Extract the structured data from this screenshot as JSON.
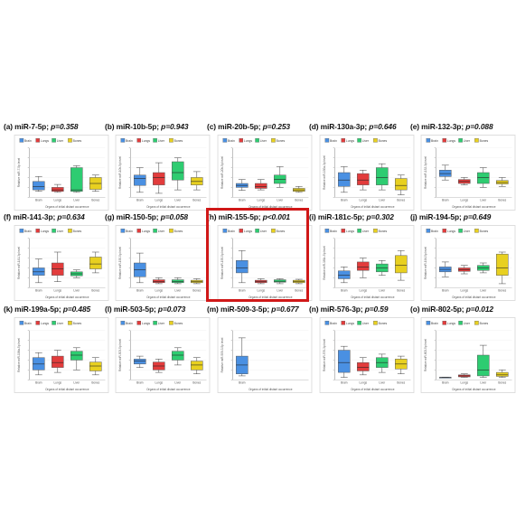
{
  "colors": {
    "brain": "#4a90e2",
    "lungs": "#e23c3c",
    "liver": "#2ecc71",
    "bones": "#e8d020",
    "frame": "#d01818"
  },
  "highlight_panel": "h",
  "chart_data": [
    {
      "type": "box",
      "panel": "(a)",
      "title": "miR-7-5p;",
      "p_label": "p=0.358",
      "ylabel": "Relative miR-7-5p level",
      "xlabel": "Organs of initial distant occurrence",
      "legend": [
        "Brain",
        "Lungs",
        "Liver",
        "Bones"
      ],
      "categories": [
        "Brain",
        "Lungs",
        "Liver",
        "Bones"
      ],
      "yticks": [],
      "ylim": [
        0,
        1
      ],
      "boxes": [
        {
          "min": 0.12,
          "q1": 0.15,
          "median": 0.22,
          "q3": 0.32,
          "max": 0.42
        },
        {
          "min": 0.1,
          "q1": 0.12,
          "median": 0.15,
          "q3": 0.2,
          "max": 0.26
        },
        {
          "min": 0.1,
          "q1": 0.12,
          "median": 0.15,
          "q3": 0.6,
          "max": 0.64
        },
        {
          "min": 0.12,
          "q1": 0.16,
          "median": 0.28,
          "q3": 0.4,
          "max": 0.45
        }
      ]
    },
    {
      "type": "box",
      "panel": "(b)",
      "title": "miR-10b-5p;",
      "p_label": "p=0.943",
      "ylabel": "Relative miR-10b-5p level",
      "xlabel": "Organs of initial distant occurrence",
      "legend": [
        "Brain",
        "Lungs",
        "Liver",
        "Bones"
      ],
      "categories": [
        "Brain",
        "Lungs",
        "Liver",
        "Bones"
      ],
      "yticks": [],
      "ylim": [
        0,
        1
      ],
      "boxes": [
        {
          "min": 0.1,
          "q1": 0.24,
          "median": 0.38,
          "q3": 0.45,
          "max": 0.6
        },
        {
          "min": 0.08,
          "q1": 0.25,
          "median": 0.4,
          "q3": 0.5,
          "max": 0.7
        },
        {
          "min": 0.15,
          "q1": 0.35,
          "median": 0.5,
          "q3": 0.72,
          "max": 0.8
        },
        {
          "min": 0.15,
          "q1": 0.25,
          "median": 0.32,
          "q3": 0.4,
          "max": 0.52
        }
      ]
    },
    {
      "type": "box",
      "panel": "(c)",
      "title": "miR-20b-5p;",
      "p_label": "p=0.253",
      "ylabel": "Relative miR-20b-5p level",
      "xlabel": "Organs of initial distant occurrence",
      "legend": [
        "Brain",
        "Lungs",
        "Liver",
        "Bones"
      ],
      "categories": [
        "Brain",
        "Lungs",
        "Liver",
        "Bones"
      ],
      "yticks": [],
      "ylim": [
        0,
        1
      ],
      "boxes": [
        {
          "min": 0.14,
          "q1": 0.2,
          "median": 0.24,
          "q3": 0.28,
          "max": 0.36
        },
        {
          "min": 0.15,
          "q1": 0.18,
          "median": 0.22,
          "q3": 0.28,
          "max": 0.36
        },
        {
          "min": 0.2,
          "q1": 0.28,
          "median": 0.36,
          "q3": 0.45,
          "max": 0.62
        },
        {
          "min": 0.1,
          "q1": 0.12,
          "median": 0.15,
          "q3": 0.18,
          "max": 0.22
        }
      ]
    },
    {
      "type": "box",
      "panel": "(d)",
      "title": "miR-130a-3p;",
      "p_label": "p=0.646",
      "ylabel": "Relative miR-130a-3p level",
      "xlabel": "Organs of initial distant occurrence",
      "legend": [
        "Brain",
        "Lungs",
        "Liver",
        "Bones"
      ],
      "categories": [
        "Brain",
        "Lungs",
        "Liver",
        "Bones"
      ],
      "yticks": [],
      "ylim": [
        0,
        1
      ],
      "boxes": [
        {
          "min": 0.1,
          "q1": 0.22,
          "median": 0.35,
          "q3": 0.5,
          "max": 0.62
        },
        {
          "min": 0.15,
          "q1": 0.25,
          "median": 0.35,
          "q3": 0.48,
          "max": 0.55
        },
        {
          "min": 0.15,
          "q1": 0.25,
          "median": 0.4,
          "q3": 0.6,
          "max": 0.68
        },
        {
          "min": 0.05,
          "q1": 0.15,
          "median": 0.24,
          "q3": 0.38,
          "max": 0.45
        }
      ]
    },
    {
      "type": "box",
      "panel": "(e)",
      "title": "miR-132-3p;",
      "p_label": "p=0.088",
      "ylabel": "Relative miR-132-3p level",
      "xlabel": "Organs of initial distant occurrence",
      "legend": [
        "Brain",
        "Lungs",
        "Liver",
        "Bones"
      ],
      "categories": [
        "Brain",
        "Lungs",
        "Liver",
        "Bones"
      ],
      "yticks": [],
      "ylim": [
        0,
        1
      ],
      "boxes": [
        {
          "min": 0.35,
          "q1": 0.42,
          "median": 0.48,
          "q3": 0.55,
          "max": 0.65
        },
        {
          "min": 0.25,
          "q1": 0.28,
          "median": 0.32,
          "q3": 0.36,
          "max": 0.4
        },
        {
          "min": 0.2,
          "q1": 0.28,
          "median": 0.4,
          "q3": 0.5,
          "max": 0.6
        },
        {
          "min": 0.22,
          "q1": 0.27,
          "median": 0.3,
          "q3": 0.34,
          "max": 0.4
        }
      ]
    },
    {
      "type": "box",
      "panel": "(f)",
      "title": "miR-141-3p;",
      "p_label": "p=0.634",
      "ylabel": "Relative miR-141-3p level",
      "xlabel": "Organs of initial distant occurrence",
      "legend": [
        "Brain",
        "Lungs",
        "Liver",
        "Bones"
      ],
      "categories": [
        "Brain",
        "Lungs",
        "Liver",
        "Bones"
      ],
      "yticks": [],
      "ylim": [
        0,
        1
      ],
      "boxes": [
        {
          "min": 0.1,
          "q1": 0.25,
          "median": 0.32,
          "q3": 0.4,
          "max": 0.58
        },
        {
          "min": 0.12,
          "q1": 0.25,
          "median": 0.38,
          "q3": 0.5,
          "max": 0.72
        },
        {
          "min": 0.2,
          "q1": 0.24,
          "median": 0.28,
          "q3": 0.32,
          "max": 0.36
        },
        {
          "min": 0.3,
          "q1": 0.38,
          "median": 0.48,
          "q3": 0.62,
          "max": 0.72
        }
      ]
    },
    {
      "type": "box",
      "panel": "(g)",
      "title": "miR-150-5p;",
      "p_label": "p=0.058",
      "ylabel": "Relative miR-150-5p level",
      "xlabel": "Organs of initial distant occurrence",
      "legend": [
        "Brain",
        "Lungs",
        "Liver",
        "Bones"
      ],
      "categories": [
        "Brain",
        "Lungs",
        "Liver",
        "Bones"
      ],
      "yticks": [],
      "ylim": [
        0,
        1
      ],
      "boxes": [
        {
          "min": 0.1,
          "q1": 0.22,
          "median": 0.36,
          "q3": 0.5,
          "max": 0.7
        },
        {
          "min": 0.08,
          "q1": 0.1,
          "median": 0.12,
          "q3": 0.16,
          "max": 0.2
        },
        {
          "min": 0.08,
          "q1": 0.1,
          "median": 0.12,
          "q3": 0.16,
          "max": 0.2
        },
        {
          "min": 0.08,
          "q1": 0.1,
          "median": 0.12,
          "q3": 0.15,
          "max": 0.18
        }
      ]
    },
    {
      "type": "box",
      "panel": "(h)",
      "title": "miR-155-5p;",
      "p_label": "p<0.001",
      "ylabel": "Relative miR-155-5p level",
      "xlabel": "Organs of initial distant occurrence",
      "legend": [
        "Brain",
        "Lungs",
        "Liver",
        "Bones"
      ],
      "categories": [
        "Brain",
        "Lungs",
        "Liver",
        "Bones"
      ],
      "yticks": [],
      "ylim": [
        0,
        1
      ],
      "boxes": [
        {
          "min": 0.1,
          "q1": 0.3,
          "median": 0.4,
          "q3": 0.55,
          "max": 0.75
        },
        {
          "min": 0.08,
          "q1": 0.1,
          "median": 0.12,
          "q3": 0.15,
          "max": 0.18
        },
        {
          "min": 0.08,
          "q1": 0.11,
          "median": 0.13,
          "q3": 0.16,
          "max": 0.18
        },
        {
          "min": 0.08,
          "q1": 0.1,
          "median": 0.12,
          "q3": 0.15,
          "max": 0.17
        }
      ]
    },
    {
      "type": "box",
      "panel": "(i)",
      "title": "miR-181c-5p;",
      "p_label": "p=0.302",
      "ylabel": "Relative miR-181c-5p level",
      "xlabel": "Organs of initial distant occurrence",
      "legend": [
        "Brain",
        "Lungs",
        "Liver",
        "Bones"
      ],
      "categories": [
        "Brain",
        "Lungs",
        "Liver",
        "Bones"
      ],
      "yticks": [],
      "ylim": [
        0,
        1
      ],
      "boxes": [
        {
          "min": 0.1,
          "q1": 0.18,
          "median": 0.25,
          "q3": 0.34,
          "max": 0.42
        },
        {
          "min": 0.2,
          "q1": 0.35,
          "median": 0.42,
          "q3": 0.52,
          "max": 0.6
        },
        {
          "min": 0.25,
          "q1": 0.32,
          "median": 0.4,
          "q3": 0.48,
          "max": 0.55
        },
        {
          "min": 0.15,
          "q1": 0.3,
          "median": 0.45,
          "q3": 0.65,
          "max": 0.75
        }
      ]
    },
    {
      "type": "box",
      "panel": "(j)",
      "title": "miR-194-5p;",
      "p_label": "p=0.649",
      "ylabel": "Relative miR-194-5p level",
      "xlabel": "Organs of initial distant occurrence",
      "legend": [
        "Brain",
        "Lungs",
        "Liver",
        "Bones"
      ],
      "categories": [
        "Brain",
        "Lungs",
        "Liver",
        "Bones"
      ],
      "yticks": [],
      "ylim": [
        0,
        1
      ],
      "boxes": [
        {
          "min": 0.22,
          "q1": 0.32,
          "median": 0.37,
          "q3": 0.42,
          "max": 0.52
        },
        {
          "min": 0.28,
          "q1": 0.33,
          "median": 0.36,
          "q3": 0.4,
          "max": 0.45
        },
        {
          "min": 0.3,
          "q1": 0.35,
          "median": 0.4,
          "q3": 0.45,
          "max": 0.5
        },
        {
          "min": 0.08,
          "q1": 0.25,
          "median": 0.4,
          "q3": 0.68,
          "max": 0.72
        }
      ]
    },
    {
      "type": "box",
      "panel": "(k)",
      "title": "miR-199a-5p;",
      "p_label": "p=0.485",
      "ylabel": "Relative miR-199a-5p level",
      "xlabel": "Organs of initial distant occurrence",
      "legend": [
        "Brain",
        "Lungs",
        "Liver",
        "Bones"
      ],
      "categories": [
        "Brain",
        "Lungs",
        "Liver",
        "Bones"
      ],
      "yticks": [],
      "ylim": [
        0,
        1
      ],
      "boxes": [
        {
          "min": 0.1,
          "q1": 0.2,
          "median": 0.32,
          "q3": 0.45,
          "max": 0.55
        },
        {
          "min": 0.15,
          "q1": 0.25,
          "median": 0.35,
          "q3": 0.48,
          "max": 0.6
        },
        {
          "min": 0.2,
          "q1": 0.4,
          "median": 0.5,
          "q3": 0.58,
          "max": 0.65
        },
        {
          "min": 0.1,
          "q1": 0.18,
          "median": 0.28,
          "q3": 0.36,
          "max": 0.45
        }
      ]
    },
    {
      "type": "box",
      "panel": "(l)",
      "title": "miR-503-5p;",
      "p_label": "p=0.073",
      "ylabel": "Relative miR-503-5p level",
      "xlabel": "Organs of initial distant occurrence",
      "legend": [
        "Brain",
        "Lungs",
        "Liver",
        "Bones"
      ],
      "categories": [
        "Brain",
        "Lungs",
        "Liver",
        "Bones"
      ],
      "yticks": [],
      "ylim": [
        0,
        1
      ],
      "boxes": [
        {
          "min": 0.25,
          "q1": 0.32,
          "median": 0.38,
          "q3": 0.42,
          "max": 0.48
        },
        {
          "min": 0.15,
          "q1": 0.2,
          "median": 0.28,
          "q3": 0.36,
          "max": 0.42
        },
        {
          "min": 0.3,
          "q1": 0.4,
          "median": 0.5,
          "q3": 0.58,
          "max": 0.65
        },
        {
          "min": 0.12,
          "q1": 0.2,
          "median": 0.3,
          "q3": 0.38,
          "max": 0.45
        }
      ]
    },
    {
      "type": "box",
      "panel": "(m)",
      "title": "miR-509-3-5p;",
      "p_label": "p=0.677",
      "ylabel": "Relative miR-509-3-5p level",
      "xlabel": "Organs of initial distant occurrence",
      "legend": [],
      "categories": [
        "Brain"
      ],
      "yticks": [],
      "ylim": [
        0,
        1
      ],
      "boxes": [
        {
          "min": 0.08,
          "q1": 0.12,
          "median": 0.3,
          "q3": 0.48,
          "max": 0.85
        }
      ]
    },
    {
      "type": "box",
      "panel": "(n)",
      "title": "miR-576-3p;",
      "p_label": "p=0.59",
      "ylabel": "Relative miR-576-3p level",
      "xlabel": "Organs of initial distant occurrence",
      "legend": [
        "Brain",
        "Lungs",
        "Liver",
        "Bones"
      ],
      "categories": [
        "Brain",
        "Lungs",
        "Liver",
        "Bones"
      ],
      "yticks": [],
      "ylim": [
        0,
        1
      ],
      "boxes": [
        {
          "min": 0.05,
          "q1": 0.15,
          "median": 0.35,
          "q3": 0.6,
          "max": 0.68
        },
        {
          "min": 0.1,
          "q1": 0.18,
          "median": 0.25,
          "q3": 0.35,
          "max": 0.45
        },
        {
          "min": 0.15,
          "q1": 0.25,
          "median": 0.35,
          "q3": 0.45,
          "max": 0.52
        },
        {
          "min": 0.12,
          "q1": 0.22,
          "median": 0.32,
          "q3": 0.42,
          "max": 0.48
        }
      ]
    },
    {
      "type": "box",
      "panel": "(o)",
      "title": "miR-802-5p;",
      "p_label": "p=0.012",
      "ylabel": "Relative miR-802-5p level",
      "xlabel": "Organs of initial distant occurrence",
      "legend": [
        "Brain",
        "Lungs",
        "Liver",
        "Bones"
      ],
      "categories": [
        "Brain",
        "Lungs",
        "Liver",
        "Bones"
      ],
      "yticks": [],
      "ylim": [
        0,
        1
      ],
      "boxes": [
        {
          "min": 0.05,
          "q1": 0.05,
          "median": 0.05,
          "q3": 0.05,
          "max": 0.05
        },
        {
          "min": 0.05,
          "q1": 0.06,
          "median": 0.08,
          "q3": 0.1,
          "max": 0.12
        },
        {
          "min": 0.05,
          "q1": 0.08,
          "median": 0.2,
          "q3": 0.5,
          "max": 0.7
        },
        {
          "min": 0.05,
          "q1": 0.07,
          "median": 0.1,
          "q3": 0.15,
          "max": 0.2
        }
      ]
    }
  ]
}
